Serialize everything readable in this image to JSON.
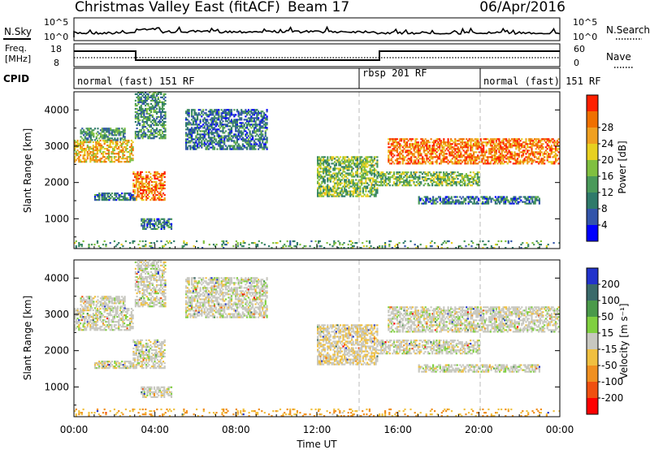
{
  "header": {
    "station": "Christmas Valley East (fitACF)",
    "beam": "Beam 17",
    "date": "06/Apr/2016"
  },
  "status_panel": {
    "nsky_label": "N.Sky",
    "nsearch_label": "N.Search",
    "freq_label_line1": "Freq.",
    "freq_label_line2": "[MHz]",
    "nave_label": "Nave",
    "cpid_label": "CPID",
    "count_tick_top": "10^5",
    "count_tick_bottom": "10^0",
    "freq_ticks": [
      "18",
      "8"
    ],
    "nave_ticks": [
      "60",
      "0"
    ]
  },
  "cpid_segments": [
    {
      "label": "normal (fast) 151 RF",
      "start_hr": 0,
      "end_hr": 14
    },
    {
      "label": "rbsp 201 RF",
      "start_hr": 14,
      "end_hr": 19
    },
    {
      "label": "normal (fast) 151 RF",
      "start_hr": 19,
      "end_hr": 24
    }
  ],
  "x_axis": {
    "label": "Time UT",
    "ticks": [
      "00:00",
      "04:00",
      "08:00",
      "12:00",
      "16:00",
      "20:00",
      "00:00"
    ],
    "range_hr": [
      0,
      24
    ]
  },
  "power_panel": {
    "ylabel": "Slant Range [km]",
    "yticks": [
      "1000",
      "2000",
      "3000",
      "4000"
    ],
    "colorbar_label": "Power [dB]",
    "colorbar_ticks": [
      "4",
      "8",
      "12",
      "16",
      "20",
      "24",
      "28"
    ],
    "colors": [
      "#0000ff",
      "#3355aa",
      "#2f7a6a",
      "#4a9a5a",
      "#80c040",
      "#e8d020",
      "#f0a020",
      "#f07000",
      "#ff2000"
    ]
  },
  "velocity_panel": {
    "ylabel": "Slant Range [km]",
    "yticks": [
      "1000",
      "2000",
      "3000",
      "4000"
    ],
    "colorbar_label": "Velocity [m s⁻¹]",
    "colorbar_ticks": [
      "200",
      "100",
      "50",
      "15",
      "-15",
      "-50",
      "-100",
      "-200"
    ],
    "colors": [
      "#2233cc",
      "#3a6a6a",
      "#4a9a4a",
      "#80d040",
      "#c8c8c0",
      "#f0c040",
      "#f09020",
      "#f05010",
      "#ff0000"
    ]
  },
  "chart_data": {
    "type": "heatmap",
    "title": "Christmas Valley East (fitACF)",
    "xlabel": "Time UT",
    "ylabel": "Slant Range [km]",
    "xlim": [
      0,
      24
    ],
    "ylim": [
      180,
      4500
    ],
    "echo_regions": [
      {
        "t_start": 0.0,
        "t_end": 2.9,
        "range_low": 2550,
        "range_high": 3150,
        "power_db": 20,
        "velocity": 0
      },
      {
        "t_start": 0.3,
        "t_end": 2.5,
        "range_low": 3150,
        "range_high": 3500,
        "power_db": 10,
        "velocity": 0
      },
      {
        "t_start": 2.9,
        "t_end": 4.5,
        "range_low": 1500,
        "range_high": 2300,
        "power_db": 24,
        "velocity": 0
      },
      {
        "t_start": 1.0,
        "t_end": 3.0,
        "range_low": 1500,
        "range_high": 1700,
        "power_db": 8,
        "velocity": 0
      },
      {
        "t_start": 3.0,
        "t_end": 4.5,
        "range_low": 3200,
        "range_high": 4500,
        "power_db": 10,
        "velocity": 0
      },
      {
        "t_start": 3.3,
        "t_end": 4.8,
        "range_low": 700,
        "range_high": 1000,
        "power_db": 8,
        "velocity": 0
      },
      {
        "t_start": 5.5,
        "t_end": 9.5,
        "range_low": 2900,
        "range_high": 4000,
        "power_db": 8,
        "velocity": 0
      },
      {
        "t_start": 12.0,
        "t_end": 15.0,
        "range_low": 1600,
        "range_high": 2700,
        "power_db": 14,
        "velocity": -10
      },
      {
        "t_start": 15.5,
        "t_end": 24.0,
        "range_low": 2500,
        "range_high": 3200,
        "power_db": 24,
        "velocity": 0
      },
      {
        "t_start": 15.0,
        "t_end": 20.0,
        "range_low": 1900,
        "range_high": 2300,
        "power_db": 14,
        "velocity": 0
      },
      {
        "t_start": 17.0,
        "t_end": 23.0,
        "range_low": 1400,
        "range_high": 1600,
        "power_db": 8,
        "velocity": 0
      },
      {
        "t_start": 0.0,
        "t_end": 24.0,
        "range_low": 180,
        "range_high": 400,
        "power_db": 12,
        "velocity": -50
      }
    ],
    "cpid_change_hours": [
      14,
      19
    ]
  }
}
